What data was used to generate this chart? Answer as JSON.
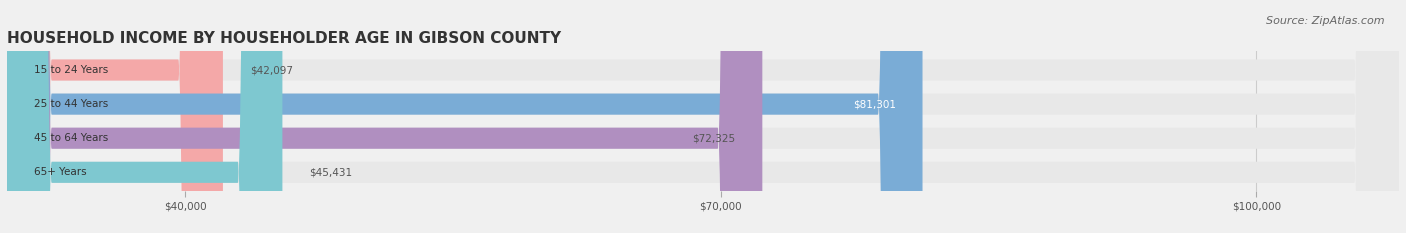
{
  "title": "HOUSEHOLD INCOME BY HOUSEHOLDER AGE IN GIBSON COUNTY",
  "source": "Source: ZipAtlas.com",
  "categories": [
    "15 to 24 Years",
    "25 to 44 Years",
    "45 to 64 Years",
    "65+ Years"
  ],
  "values": [
    42097,
    81301,
    72325,
    45431
  ],
  "bar_colors": [
    "#f4a8a8",
    "#7aacd6",
    "#b08fc0",
    "#7ec8d0"
  ],
  "bar_labels": [
    "$42,097",
    "$81,301",
    "$72,325",
    "$45,431"
  ],
  "label_colors": [
    "#555555",
    "#ffffff",
    "#555555",
    "#555555"
  ],
  "x_min": 30000,
  "x_max": 108000,
  "x_ticks": [
    40000,
    70000,
    100000
  ],
  "x_tick_labels": [
    "$40,000",
    "$70,000",
    "$100,000"
  ],
  "background_color": "#f0f0f0",
  "bar_bg_color": "#e8e8e8",
  "title_fontsize": 11,
  "source_fontsize": 8
}
